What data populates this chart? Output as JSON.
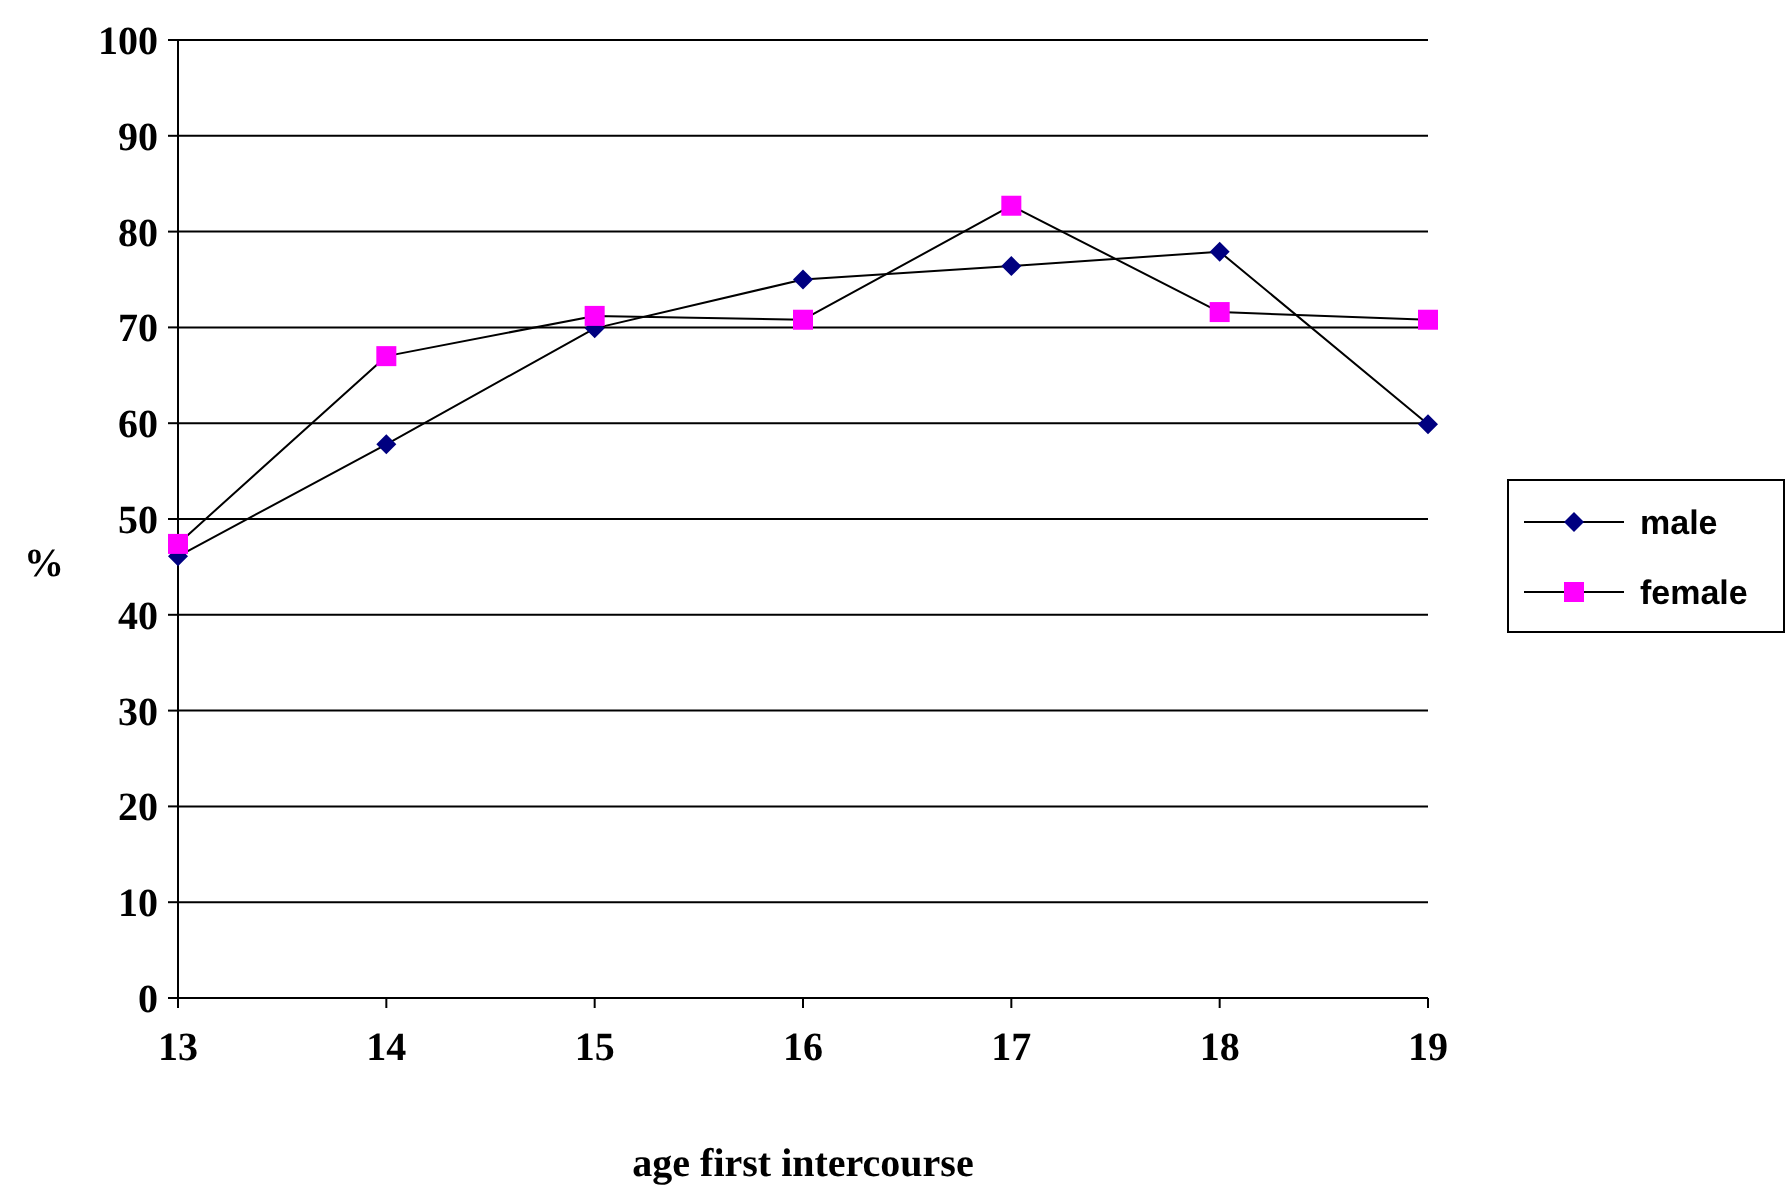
{
  "chart_data": {
    "type": "line",
    "xlabel": "age first intercourse",
    "ylabel": "%",
    "x": [
      13,
      14,
      15,
      16,
      17,
      18,
      19
    ],
    "xlim": [
      13,
      19
    ],
    "xticks": [
      13,
      14,
      15,
      16,
      17,
      18,
      19
    ],
    "ylim": [
      0,
      100
    ],
    "yticks": [
      0,
      10,
      20,
      30,
      40,
      50,
      60,
      70,
      80,
      90,
      100
    ],
    "grid": "y",
    "legend": "right",
    "series": [
      {
        "name": "male",
        "color": "#000080",
        "marker": "diamond",
        "values": [
          46.1,
          57.8,
          69.9,
          75,
          76.4,
          77.9,
          59.9
        ]
      },
      {
        "name": "female",
        "color": "#ff00ff",
        "marker": "square",
        "values": [
          47.4,
          67,
          71.2,
          70.8,
          82.7,
          71.6,
          70.8
        ]
      }
    ]
  }
}
